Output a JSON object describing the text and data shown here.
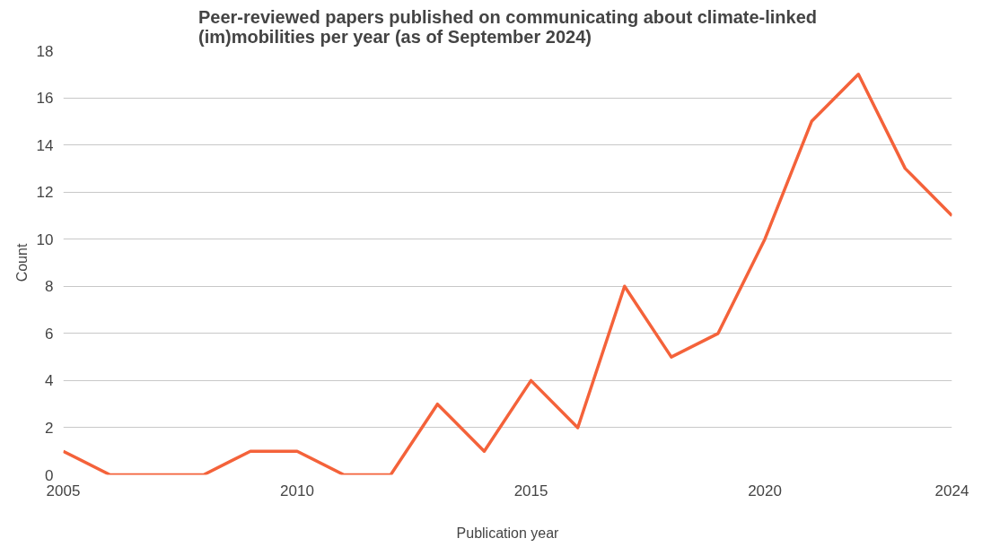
{
  "chart_data": {
    "type": "line",
    "title": "Peer-reviewed papers published on communicating about climate-linked\n(im)mobilities per year (as of September 2024)",
    "xlabel": "Publication year",
    "ylabel": "Count",
    "x": [
      2005,
      2006,
      2007,
      2008,
      2009,
      2010,
      2011,
      2012,
      2013,
      2014,
      2015,
      2016,
      2017,
      2018,
      2019,
      2020,
      2021,
      2022,
      2023,
      2024
    ],
    "series": [
      {
        "color": "#f4623a",
        "values": [
          1,
          0,
          0,
          0,
          1,
          1,
          0,
          0,
          3,
          1,
          4,
          2,
          8,
          5,
          6,
          10,
          15,
          17,
          13,
          11
        ]
      }
    ],
    "xlim": [
      2005,
      2024
    ],
    "xticks": [
      2005,
      2010,
      2015,
      2020,
      2024
    ],
    "ylim": [
      0,
      18
    ],
    "yticks": [
      0,
      2,
      4,
      6,
      8,
      10,
      12,
      14,
      16,
      18
    ],
    "grid": "y",
    "marker": "none",
    "line_style": "solid"
  }
}
